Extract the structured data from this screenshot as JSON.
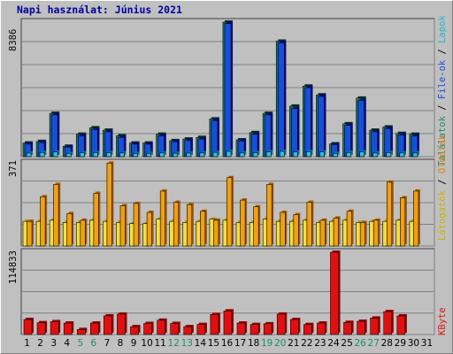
{
  "title": "Napi használat: Június 2021",
  "colors": {
    "hits": "#1450d8",
    "files": "#1e6e50",
    "pages": "#1e8ad8",
    "visits": "#f0a010",
    "sites": "#f0e040",
    "kbytes": "#e01010",
    "weekday": "#000000",
    "weekend": "#1e8c6e"
  },
  "legend": {
    "top": [
      {
        "text": "Találatok",
        "color": "#1e8c6e"
      },
      {
        "text": " / ",
        "color": "#000000"
      },
      {
        "text": "File-ok",
        "color": "#1450d8"
      },
      {
        "text": " / ",
        "color": "#000000"
      },
      {
        "text": "Lapok",
        "color": "#1eb4d8"
      }
    ],
    "middle": [
      {
        "text": "Látogatók",
        "color": "#c8b400"
      },
      {
        "text": " / ",
        "color": "#000000"
      },
      {
        "text": "Oldalak",
        "color": "#e08010"
      }
    ],
    "bottom": [
      {
        "text": "KByte",
        "color": "#e01010"
      }
    ]
  },
  "chart_data": {
    "type": "bar",
    "title": "Napi használat: Június 2021",
    "x": [
      "1",
      "2",
      "3",
      "4",
      "5",
      "6",
      "7",
      "8",
      "9",
      "10",
      "11",
      "12",
      "13",
      "14",
      "15",
      "16",
      "17",
      "18",
      "19",
      "20",
      "21",
      "22",
      "23",
      "24",
      "25",
      "26",
      "27",
      "28",
      "29",
      "30",
      "31"
    ],
    "weekend_days": [
      "5",
      "6",
      "12",
      "13",
      "19",
      "20",
      "26",
      "27"
    ],
    "panels": [
      {
        "id": "hits",
        "ymax_label": "8386",
        "ylim": [
          0,
          8386
        ],
        "series": [
          {
            "name": "Találatok",
            "values": [
              850,
              950,
              2700,
              650,
              1400,
              1800,
              1650,
              1300,
              850,
              850,
              1400,
              1000,
              1100,
              1200,
              2350,
              8386,
              1050,
              1500,
              2700,
              7200,
              3150,
              4400,
              3850,
              800,
              2050,
              3650,
              1650,
              1850,
              1450,
              1400,
              0
            ]
          },
          {
            "name": "File-ok",
            "values": [
              780,
              880,
              2600,
              600,
              1300,
              1700,
              1550,
              1200,
              780,
              780,
              1300,
              930,
              1020,
              1100,
              2250,
              8300,
              980,
              1400,
              2600,
              7100,
              3000,
              4300,
              3750,
              740,
              1950,
              3500,
              1550,
              1750,
              1350,
              1300,
              0
            ]
          },
          {
            "name": "Lapok",
            "values": [
              220,
              260,
              290,
              200,
              240,
              250,
              250,
              230,
              200,
              200,
              230,
              210,
              220,
              230,
              270,
              330,
              230,
              250,
              300,
              330,
              290,
              310,
              300,
              200,
              260,
              300,
              230,
              250,
              230,
              230,
              0
            ]
          }
        ]
      },
      {
        "id": "visits",
        "ymax_label": "371",
        "ylim": [
          0,
          371
        ],
        "series": [
          {
            "name": "Látogatók",
            "values": [
              110,
              110,
              115,
              105,
              105,
              115,
              110,
              105,
              100,
              100,
              120,
              110,
              105,
              110,
              120,
              115,
              105,
              105,
              120,
              110,
              110,
              115,
              105,
              110,
              115,
              105,
              110,
              110,
              115,
              110,
              0
            ]
          },
          {
            "name": "Oldalak",
            "values": [
              110,
              220,
              275,
              145,
              115,
              235,
              370,
              180,
              190,
              150,
              245,
              195,
              185,
              155,
              115,
              305,
              205,
              175,
              275,
              150,
              140,
              195,
              115,
              125,
              155,
              105,
              115,
              285,
              215,
              245,
              0
            ]
          }
        ]
      },
      {
        "id": "kbytes",
        "ymax_label": "114833",
        "ylim": [
          0,
          114833
        ],
        "series": [
          {
            "name": "KByte",
            "values": [
              21000,
              16500,
              18000,
              16000,
              7000,
              16000,
              26000,
              28500,
              11000,
              15500,
              20000,
              15500,
              11000,
              14000,
              28000,
              33000,
              16000,
              14000,
              15000,
              28500,
              21000,
              14000,
              16000,
              114833,
              17000,
              18500,
              23000,
              32000,
              26000,
              0,
              0
            ]
          }
        ]
      }
    ]
  }
}
